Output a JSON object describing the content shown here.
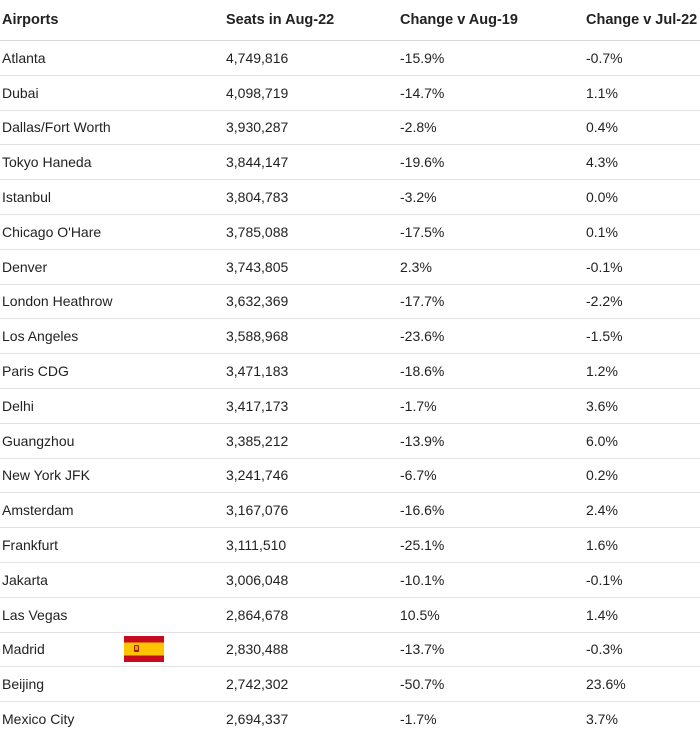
{
  "table": {
    "headers": [
      "Airports",
      "Seats in Aug-22",
      "Change v Aug-19",
      "Change v Jul-22"
    ],
    "rows": [
      [
        "Atlanta",
        "4,749,816",
        "-15.9%",
        "-0.7%"
      ],
      [
        "Dubai",
        "4,098,719",
        "-14.7%",
        "1.1%"
      ],
      [
        "Dallas/Fort Worth",
        "3,930,287",
        "-2.8%",
        "0.4%"
      ],
      [
        "Tokyo Haneda",
        "3,844,147",
        "-19.6%",
        "4.3%"
      ],
      [
        "Istanbul",
        "3,804,783",
        "-3.2%",
        "0.0%"
      ],
      [
        "Chicago O'Hare",
        "3,785,088",
        "-17.5%",
        "0.1%"
      ],
      [
        "Denver",
        "3,743,805",
        "2.3%",
        "-0.1%"
      ],
      [
        "London Heathrow",
        "3,632,369",
        "-17.7%",
        "-2.2%"
      ],
      [
        "Los Angeles",
        "3,588,968",
        "-23.6%",
        "-1.5%"
      ],
      [
        "Paris CDG",
        "3,471,183",
        "-18.6%",
        "1.2%"
      ],
      [
        "Delhi",
        "3,417,173",
        "-1.7%",
        "3.6%"
      ],
      [
        "Guangzhou",
        "3,385,212",
        "-13.9%",
        "6.0%"
      ],
      [
        "New York JFK",
        "3,241,746",
        "-6.7%",
        "0.2%"
      ],
      [
        "Amsterdam",
        "3,167,076",
        "-16.6%",
        "2.4%"
      ],
      [
        "Frankfurt",
        "3,111,510",
        "-25.1%",
        "1.6%"
      ],
      [
        "Jakarta",
        "3,006,048",
        "-10.1%",
        "-0.1%"
      ],
      [
        "Las Vegas",
        "2,864,678",
        "10.5%",
        "1.4%"
      ],
      [
        "Madrid",
        "2,830,488",
        "-13.7%",
        "-0.3%"
      ],
      [
        "Beijing",
        "2,742,302",
        "-50.7%",
        "23.6%"
      ],
      [
        "Mexico City",
        "2,694,337",
        "-1.7%",
        "3.7%"
      ]
    ],
    "flag": {
      "row": 17,
      "icon": "spain-flag-icon",
      "colors": {
        "red": "#c60b1e",
        "yellow": "#ffc400"
      }
    }
  }
}
